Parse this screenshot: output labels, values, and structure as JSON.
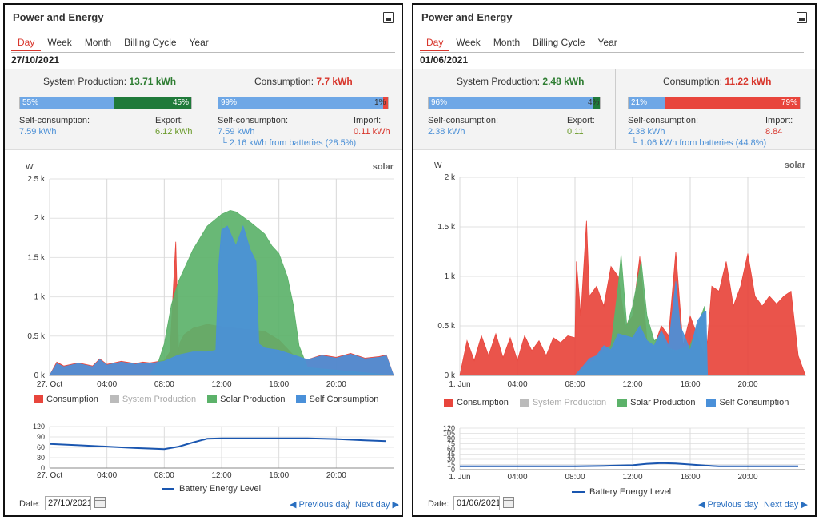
{
  "left": {
    "title": "Power and Energy",
    "tabs": [
      "Day",
      "Week",
      "Month",
      "Billing Cycle",
      "Year"
    ],
    "active_tab": "Day",
    "date": "27/10/2021",
    "production": {
      "label": "System Production:",
      "value": "13.71 kWh",
      "self_pct": 55,
      "self_pct_label": "55%",
      "export_pct": 45,
      "export_pct_label": "45%"
    },
    "production_sub": {
      "self_label": "Self-consumption:",
      "self_value": "7.59 kWh",
      "export_label": "Export:",
      "export_value": "6.12 kWh"
    },
    "consumption": {
      "label": "Consumption:",
      "value": "7.7 kWh",
      "self_pct": 99,
      "self_pct_label": "99%",
      "import_pct": 1,
      "import_pct_label": "1%"
    },
    "consumption_sub": {
      "self_label": "Self-consumption:",
      "self_value": "7.59 kWh",
      "import_label": "Import:",
      "import_value": "0.11 kWh",
      "batteries": "└ 2.16 kWh from batteries (28.5%)"
    },
    "brand": "solar",
    "chart_data": {
      "type": "area",
      "ylabel": "W",
      "y_ticks": [
        "0 k",
        "0.5 k",
        "1 k",
        "1.5 k",
        "2 k",
        "2.5 k"
      ],
      "ylim": [
        0,
        2500
      ],
      "x_ticks": [
        "27. Oct",
        "04:00",
        "08:00",
        "12:00",
        "16:00",
        "20:00"
      ],
      "x_range_hours": [
        0,
        24
      ],
      "series": [
        {
          "name": "Consumption",
          "color": "#e8453c",
          "hours": [
            0,
            0.5,
            1,
            2,
            3,
            3.5,
            4,
            5,
            6,
            6.5,
            7,
            8,
            8.4,
            8.8,
            9,
            9.1,
            9.4,
            10,
            11,
            12,
            13,
            14,
            15,
            16,
            17,
            18,
            19,
            20,
            21,
            22,
            23,
            23.5,
            24
          ],
          "values": [
            0,
            170,
            120,
            160,
            120,
            210,
            140,
            180,
            150,
            170,
            160,
            190,
            300,
            1700,
            300,
            420,
            520,
            600,
            650,
            620,
            600,
            580,
            560,
            450,
            260,
            200,
            260,
            230,
            280,
            220,
            240,
            260,
            0
          ]
        },
        {
          "name": "Solar Production",
          "color": "#5cb26a",
          "hours": [
            0,
            7,
            7.6,
            8,
            8.5,
            9,
            10,
            11,
            12,
            12.6,
            13,
            14,
            15,
            15.5,
            16,
            16.6,
            17,
            17.4,
            18,
            24
          ],
          "values": [
            0,
            0,
            180,
            400,
            900,
            1200,
            1600,
            1900,
            2050,
            2100,
            2080,
            1950,
            1800,
            1650,
            1550,
            1250,
            900,
            380,
            100,
            0
          ]
        },
        {
          "name": "Self Consumption",
          "color": "#4a90d9",
          "hours": [
            0,
            0.5,
            1,
            2,
            3,
            3.5,
            4,
            5,
            6,
            6.5,
            7,
            8,
            9,
            10,
            11,
            11.6,
            11.8,
            12,
            12.4,
            13,
            13.5,
            14,
            14.4,
            14.6,
            15,
            16,
            17,
            18,
            19,
            20,
            21,
            22,
            23,
            23.5,
            24
          ],
          "values": [
            0,
            150,
            110,
            150,
            110,
            200,
            130,
            170,
            140,
            160,
            150,
            180,
            260,
            300,
            300,
            320,
            1400,
            1850,
            1900,
            1650,
            1900,
            1600,
            1450,
            400,
            350,
            320,
            260,
            200,
            250,
            220,
            270,
            210,
            230,
            250,
            0
          ]
        }
      ],
      "legend": [
        "Consumption",
        "System Production",
        "Solar Production",
        "Self Consumption"
      ]
    },
    "battery_chart": {
      "type": "line",
      "y_ticks": [
        "0",
        "30",
        "60",
        "90",
        "120"
      ],
      "ylim": [
        0,
        120
      ],
      "x_ticks": [
        "27. Oct",
        "04:00",
        "08:00",
        "12:00",
        "16:00",
        "20:00"
      ],
      "hours": [
        0,
        2,
        4,
        6,
        8,
        9,
        10,
        11,
        12,
        14,
        16,
        18,
        20,
        22,
        23.5
      ],
      "values": [
        70,
        66,
        62,
        58,
        55,
        62,
        74,
        85,
        86,
        86,
        86,
        86,
        84,
        80,
        78
      ],
      "legend": "Battery Energy Level"
    },
    "footer": {
      "date_label": "Date:",
      "date_value": "27/10/2021",
      "prev": "◀ Previous day",
      "next": "Next day ▶"
    }
  },
  "right": {
    "title": "Power and Energy",
    "tabs": [
      "Day",
      "Week",
      "Month",
      "Billing Cycle",
      "Year"
    ],
    "active_tab": "Day",
    "date": "01/06/2021",
    "production": {
      "label": "System Production:",
      "value": "2.48 kWh",
      "self_pct": 96,
      "self_pct_label": "96%",
      "export_pct": 4,
      "export_pct_label": "4%"
    },
    "production_sub": {
      "self_label": "Self-consumption:",
      "self_value": "2.38 kWh",
      "export_label": "Export:",
      "export_value": "0.11"
    },
    "consumption": {
      "label": "Consumption:",
      "value": "11.22 kWh",
      "self_pct": 21,
      "self_pct_label": "21%",
      "import_pct": 79,
      "import_pct_label": "79%"
    },
    "consumption_sub": {
      "self_label": "Self-consumption:",
      "self_value": "2.38 kWh",
      "import_label": "Import:",
      "import_value": "8.84",
      "batteries": "└ 1.06 kWh from batteries (44.8%)"
    },
    "brand": "solar",
    "chart_data": {
      "type": "area",
      "ylabel": "W",
      "y_ticks": [
        "0 k",
        "0.5 k",
        "1 k",
        "1.5 k",
        "2 k"
      ],
      "ylim": [
        0,
        2000
      ],
      "x_ticks": [
        "1. Jun",
        "04:00",
        "08:00",
        "12:00",
        "16:00",
        "20:00"
      ],
      "x_range_hours": [
        0,
        24
      ],
      "series": [
        {
          "name": "Consumption",
          "color": "#e8453c",
          "hours": [
            0,
            0.5,
            1,
            1.5,
            2,
            2.5,
            3,
            3.5,
            4,
            4.5,
            5,
            5.5,
            6,
            6.5,
            7,
            7.5,
            8,
            8.1,
            8.4,
            8.8,
            9,
            9.5,
            10,
            10.5,
            11,
            11.5,
            12,
            12.5,
            13,
            13.5,
            14,
            14.5,
            15,
            15.5,
            16,
            16.5,
            17,
            17.2,
            17.5,
            18,
            18.5,
            19,
            19.5,
            20,
            20.5,
            21,
            21.5,
            22,
            22.5,
            23,
            23.5,
            24
          ],
          "values": [
            0,
            350,
            150,
            400,
            200,
            420,
            180,
            380,
            150,
            400,
            250,
            350,
            200,
            380,
            330,
            400,
            380,
            1150,
            600,
            1560,
            800,
            900,
            700,
            1100,
            1000,
            500,
            600,
            1200,
            350,
            300,
            500,
            400,
            1250,
            300,
            600,
            400,
            200,
            350,
            900,
            850,
            1150,
            700,
            900,
            1230,
            800,
            700,
            800,
            720,
            800,
            850,
            200,
            0
          ]
        },
        {
          "name": "Solar Production",
          "color": "#5cb26a",
          "hours": [
            0,
            8,
            9,
            10,
            10.5,
            11,
            11.2,
            11.6,
            12,
            12.6,
            13,
            13.5,
            14,
            14.4,
            15,
            16,
            17,
            17.2,
            24
          ],
          "values": [
            0,
            0,
            120,
            250,
            300,
            900,
            1220,
            500,
            700,
            1150,
            600,
            350,
            400,
            280,
            250,
            300,
            700,
            0,
            0
          ]
        },
        {
          "name": "Self Consumption",
          "color": "#4a90d9",
          "hours": [
            0,
            8,
            8.6,
            9,
            9.5,
            10,
            10.5,
            11,
            11.5,
            12,
            12.5,
            13,
            13.5,
            14,
            14.5,
            15,
            15.3,
            15.6,
            16,
            16.5,
            17,
            17.1,
            17.2,
            24
          ],
          "values": [
            0,
            0,
            100,
            170,
            200,
            300,
            260,
            420,
            400,
            380,
            500,
            350,
            300,
            450,
            300,
            950,
            500,
            400,
            250,
            550,
            650,
            650,
            0,
            0
          ]
        }
      ],
      "legend": [
        "Consumption",
        "System Production",
        "Solar Production",
        "Self Consumption"
      ]
    },
    "battery_chart": {
      "type": "line",
      "y_ticks": [
        "0",
        "15",
        "30",
        "45",
        "60",
        "75",
        "90",
        "105",
        "120"
      ],
      "ylim": [
        0,
        120
      ],
      "x_ticks": [
        "1. Jun",
        "04:00",
        "08:00",
        "12:00",
        "16:00",
        "20:00"
      ],
      "hours": [
        0,
        4,
        8,
        10,
        12,
        13,
        14,
        15,
        16,
        17,
        18,
        20,
        22,
        23.5
      ],
      "values": [
        10,
        10,
        10,
        11,
        13,
        17,
        19,
        18,
        15,
        12,
        10,
        10,
        10,
        10
      ],
      "legend": "Battery Energy Level"
    },
    "footer": {
      "date_label": "Date:",
      "date_value": "01/06/2021",
      "prev": "◀ Previous day",
      "next": "Next day ▶"
    }
  }
}
